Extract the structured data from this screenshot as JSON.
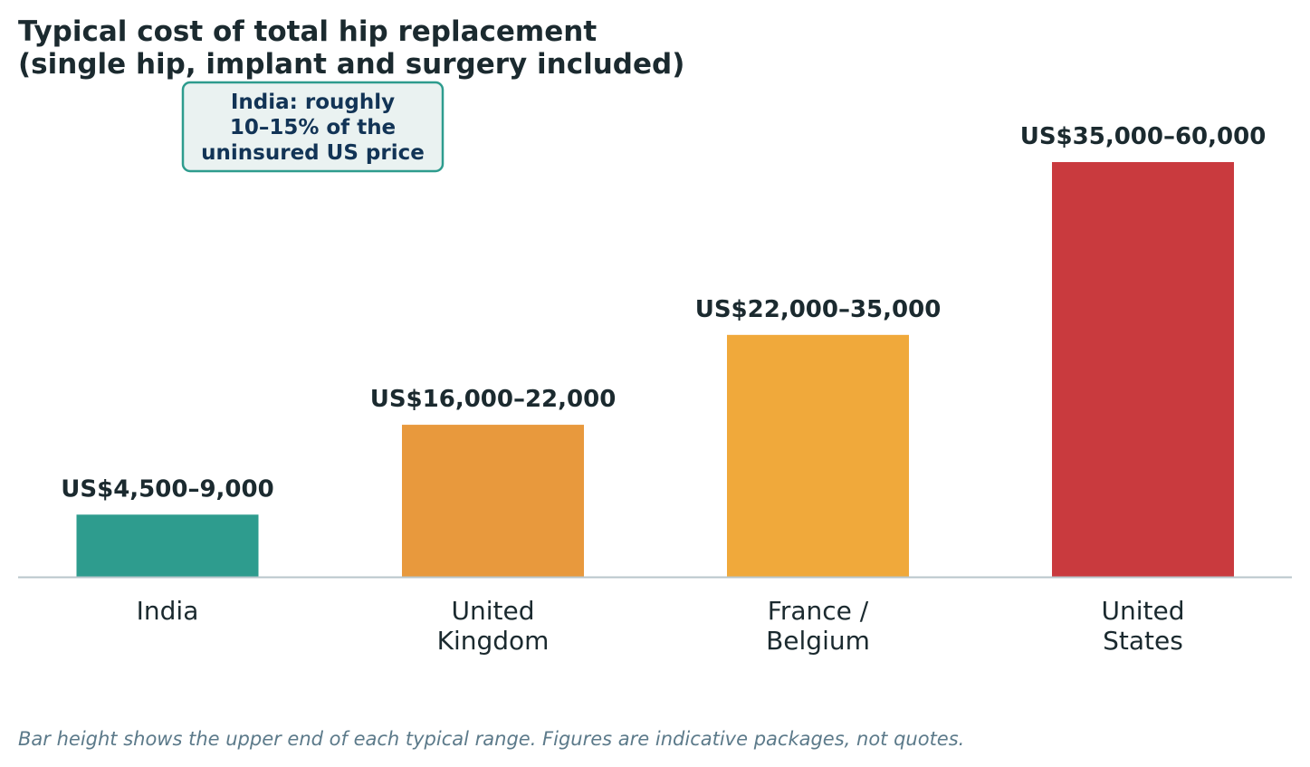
{
  "chart_data": {
    "type": "bar",
    "title": "Typical cost of total hip replacement\n(single hip, implant and surgery included)",
    "title_lines": [
      "Typical cost of total hip replacement",
      "(single hip, implant and surgery included)"
    ],
    "categories": [
      "India",
      "United\nKingdom",
      "France /\nBelgium",
      "United\nStates"
    ],
    "category_lines": [
      [
        "India"
      ],
      [
        "United",
        "Kingdom"
      ],
      [
        "France /",
        "Belgium"
      ],
      [
        "United",
        "States"
      ]
    ],
    "values": [
      9000,
      22000,
      35000,
      60000
    ],
    "value_labels": [
      "US$4,500–9,000",
      "US$16,000–22,000",
      "US$22,000–35,000",
      "US$35,000–60,000"
    ],
    "colors": [
      "#2e9c8e",
      "#e8993d",
      "#f0a93b",
      "#c93a3e"
    ],
    "xlabel": "",
    "ylabel": "",
    "ylim": [
      0,
      60000
    ],
    "grid": false,
    "annotation": {
      "lines": [
        "India: roughly",
        "10–15% of the",
        "uninsured US price"
      ],
      "border_color": "#2e9c8e",
      "fill_color": "#eaf2f1",
      "text_color": "#123456"
    },
    "footnote": "Bar height shows the upper end of each typical range. Figures are indicative packages, not quotes."
  }
}
